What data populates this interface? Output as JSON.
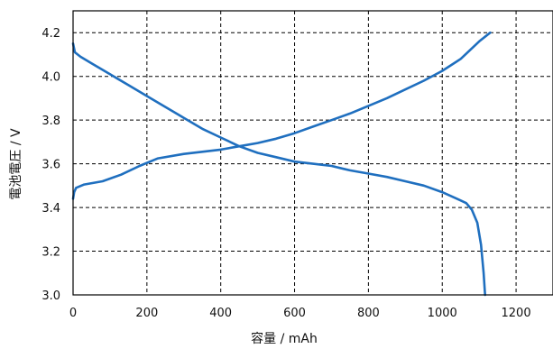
{
  "chart_data": {
    "type": "line",
    "title": "",
    "xlabel": "容量 / mAh",
    "ylabel": "電池電圧 / V",
    "xlim": [
      0,
      1300
    ],
    "ylim": [
      3.0,
      4.3
    ],
    "x_ticks": [
      "0",
      "200",
      "400",
      "600",
      "800",
      "1000",
      "1200"
    ],
    "y_ticks": [
      "3.0",
      "3.2",
      "3.4",
      "3.6",
      "3.8",
      "4.0",
      "4.2"
    ],
    "grid": true,
    "legend": "none",
    "line_color": "#1f6fbf",
    "series": [
      {
        "points": [
          [
            0,
            4.15
          ],
          [
            5,
            4.11
          ],
          [
            20,
            4.09
          ],
          [
            50,
            4.06
          ],
          [
            100,
            4.01
          ],
          [
            150,
            3.96
          ],
          [
            200,
            3.91
          ],
          [
            250,
            3.86
          ],
          [
            300,
            3.81
          ],
          [
            350,
            3.76
          ],
          [
            400,
            3.72
          ],
          [
            450,
            3.68
          ],
          [
            500,
            3.65
          ],
          [
            550,
            3.63
          ],
          [
            600,
            3.61
          ],
          [
            650,
            3.6
          ],
          [
            700,
            3.59
          ],
          [
            750,
            3.57
          ],
          [
            800,
            3.555
          ],
          [
            850,
            3.54
          ],
          [
            900,
            3.52
          ],
          [
            950,
            3.5
          ],
          [
            1000,
            3.47
          ],
          [
            1040,
            3.44
          ],
          [
            1065,
            3.42
          ],
          [
            1080,
            3.39
          ],
          [
            1095,
            3.33
          ],
          [
            1105,
            3.23
          ],
          [
            1112,
            3.1
          ],
          [
            1116,
            3.0
          ]
        ]
      },
      {
        "points": [
          [
            0,
            3.44
          ],
          [
            3,
            3.47
          ],
          [
            8,
            3.49
          ],
          [
            30,
            3.505
          ],
          [
            80,
            3.52
          ],
          [
            130,
            3.55
          ],
          [
            180,
            3.59
          ],
          [
            230,
            3.625
          ],
          [
            300,
            3.645
          ],
          [
            350,
            3.655
          ],
          [
            400,
            3.665
          ],
          [
            450,
            3.68
          ],
          [
            500,
            3.695
          ],
          [
            550,
            3.715
          ],
          [
            600,
            3.74
          ],
          [
            650,
            3.77
          ],
          [
            700,
            3.8
          ],
          [
            750,
            3.83
          ],
          [
            800,
            3.865
          ],
          [
            850,
            3.9
          ],
          [
            900,
            3.94
          ],
          [
            950,
            3.98
          ],
          [
            1000,
            4.025
          ],
          [
            1050,
            4.08
          ],
          [
            1100,
            4.16
          ],
          [
            1130,
            4.2
          ]
        ]
      }
    ]
  }
}
